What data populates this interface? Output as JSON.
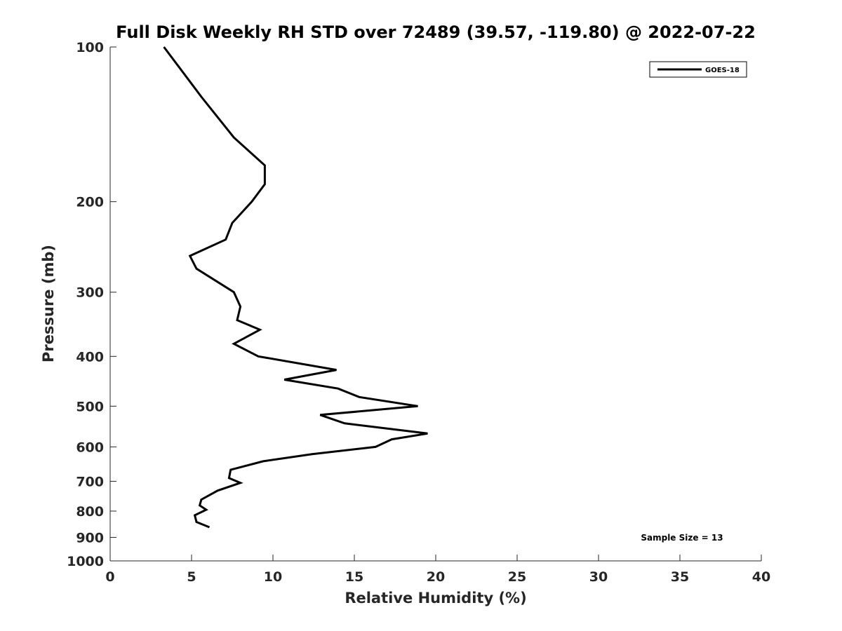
{
  "chart_data": {
    "type": "line",
    "title": "Full Disk Weekly RH STD over 72489 (39.57, -119.80) @ 2022-07-22",
    "xlabel": "Relative Humidity (%)",
    "ylabel": "Pressure (mb)",
    "xlim": [
      0,
      40
    ],
    "ylim": [
      100,
      1000
    ],
    "y_scale": "log",
    "y_reversed": true,
    "x_ticks": [
      0,
      5,
      10,
      15,
      20,
      25,
      30,
      35,
      40
    ],
    "y_ticks": [
      100,
      200,
      300,
      400,
      500,
      600,
      700,
      800,
      900,
      1000
    ],
    "grid": false,
    "legend_position": "top-right",
    "series": [
      {
        "name": "GOES-18",
        "color": "#000000",
        "points": [
          {
            "x": 3.3,
            "p": 100
          },
          {
            "x": 5.6,
            "p": 125
          },
          {
            "x": 7.6,
            "p": 150
          },
          {
            "x": 9.5,
            "p": 170
          },
          {
            "x": 9.5,
            "p": 185
          },
          {
            "x": 8.7,
            "p": 200
          },
          {
            "x": 7.5,
            "p": 220
          },
          {
            "x": 7.1,
            "p": 237
          },
          {
            "x": 4.9,
            "p": 255
          },
          {
            "x": 5.3,
            "p": 270
          },
          {
            "x": 7.6,
            "p": 300
          },
          {
            "x": 8.0,
            "p": 320
          },
          {
            "x": 7.8,
            "p": 340
          },
          {
            "x": 9.2,
            "p": 355
          },
          {
            "x": 7.6,
            "p": 378
          },
          {
            "x": 9.1,
            "p": 400
          },
          {
            "x": 13.9,
            "p": 425
          },
          {
            "x": 10.7,
            "p": 444
          },
          {
            "x": 14.0,
            "p": 462
          },
          {
            "x": 15.3,
            "p": 480
          },
          {
            "x": 18.9,
            "p": 500
          },
          {
            "x": 12.9,
            "p": 520
          },
          {
            "x": 14.4,
            "p": 540
          },
          {
            "x": 19.5,
            "p": 565
          },
          {
            "x": 17.3,
            "p": 580
          },
          {
            "x": 16.3,
            "p": 600
          },
          {
            "x": 12.4,
            "p": 620
          },
          {
            "x": 9.4,
            "p": 640
          },
          {
            "x": 7.4,
            "p": 665
          },
          {
            "x": 7.3,
            "p": 690
          },
          {
            "x": 8.0,
            "p": 705
          },
          {
            "x": 6.6,
            "p": 730
          },
          {
            "x": 5.6,
            "p": 760
          },
          {
            "x": 5.5,
            "p": 780
          },
          {
            "x": 5.9,
            "p": 795
          },
          {
            "x": 5.2,
            "p": 815
          },
          {
            "x": 5.3,
            "p": 840
          },
          {
            "x": 6.1,
            "p": 860
          }
        ]
      }
    ],
    "annotation": "Sample Size = 13"
  }
}
